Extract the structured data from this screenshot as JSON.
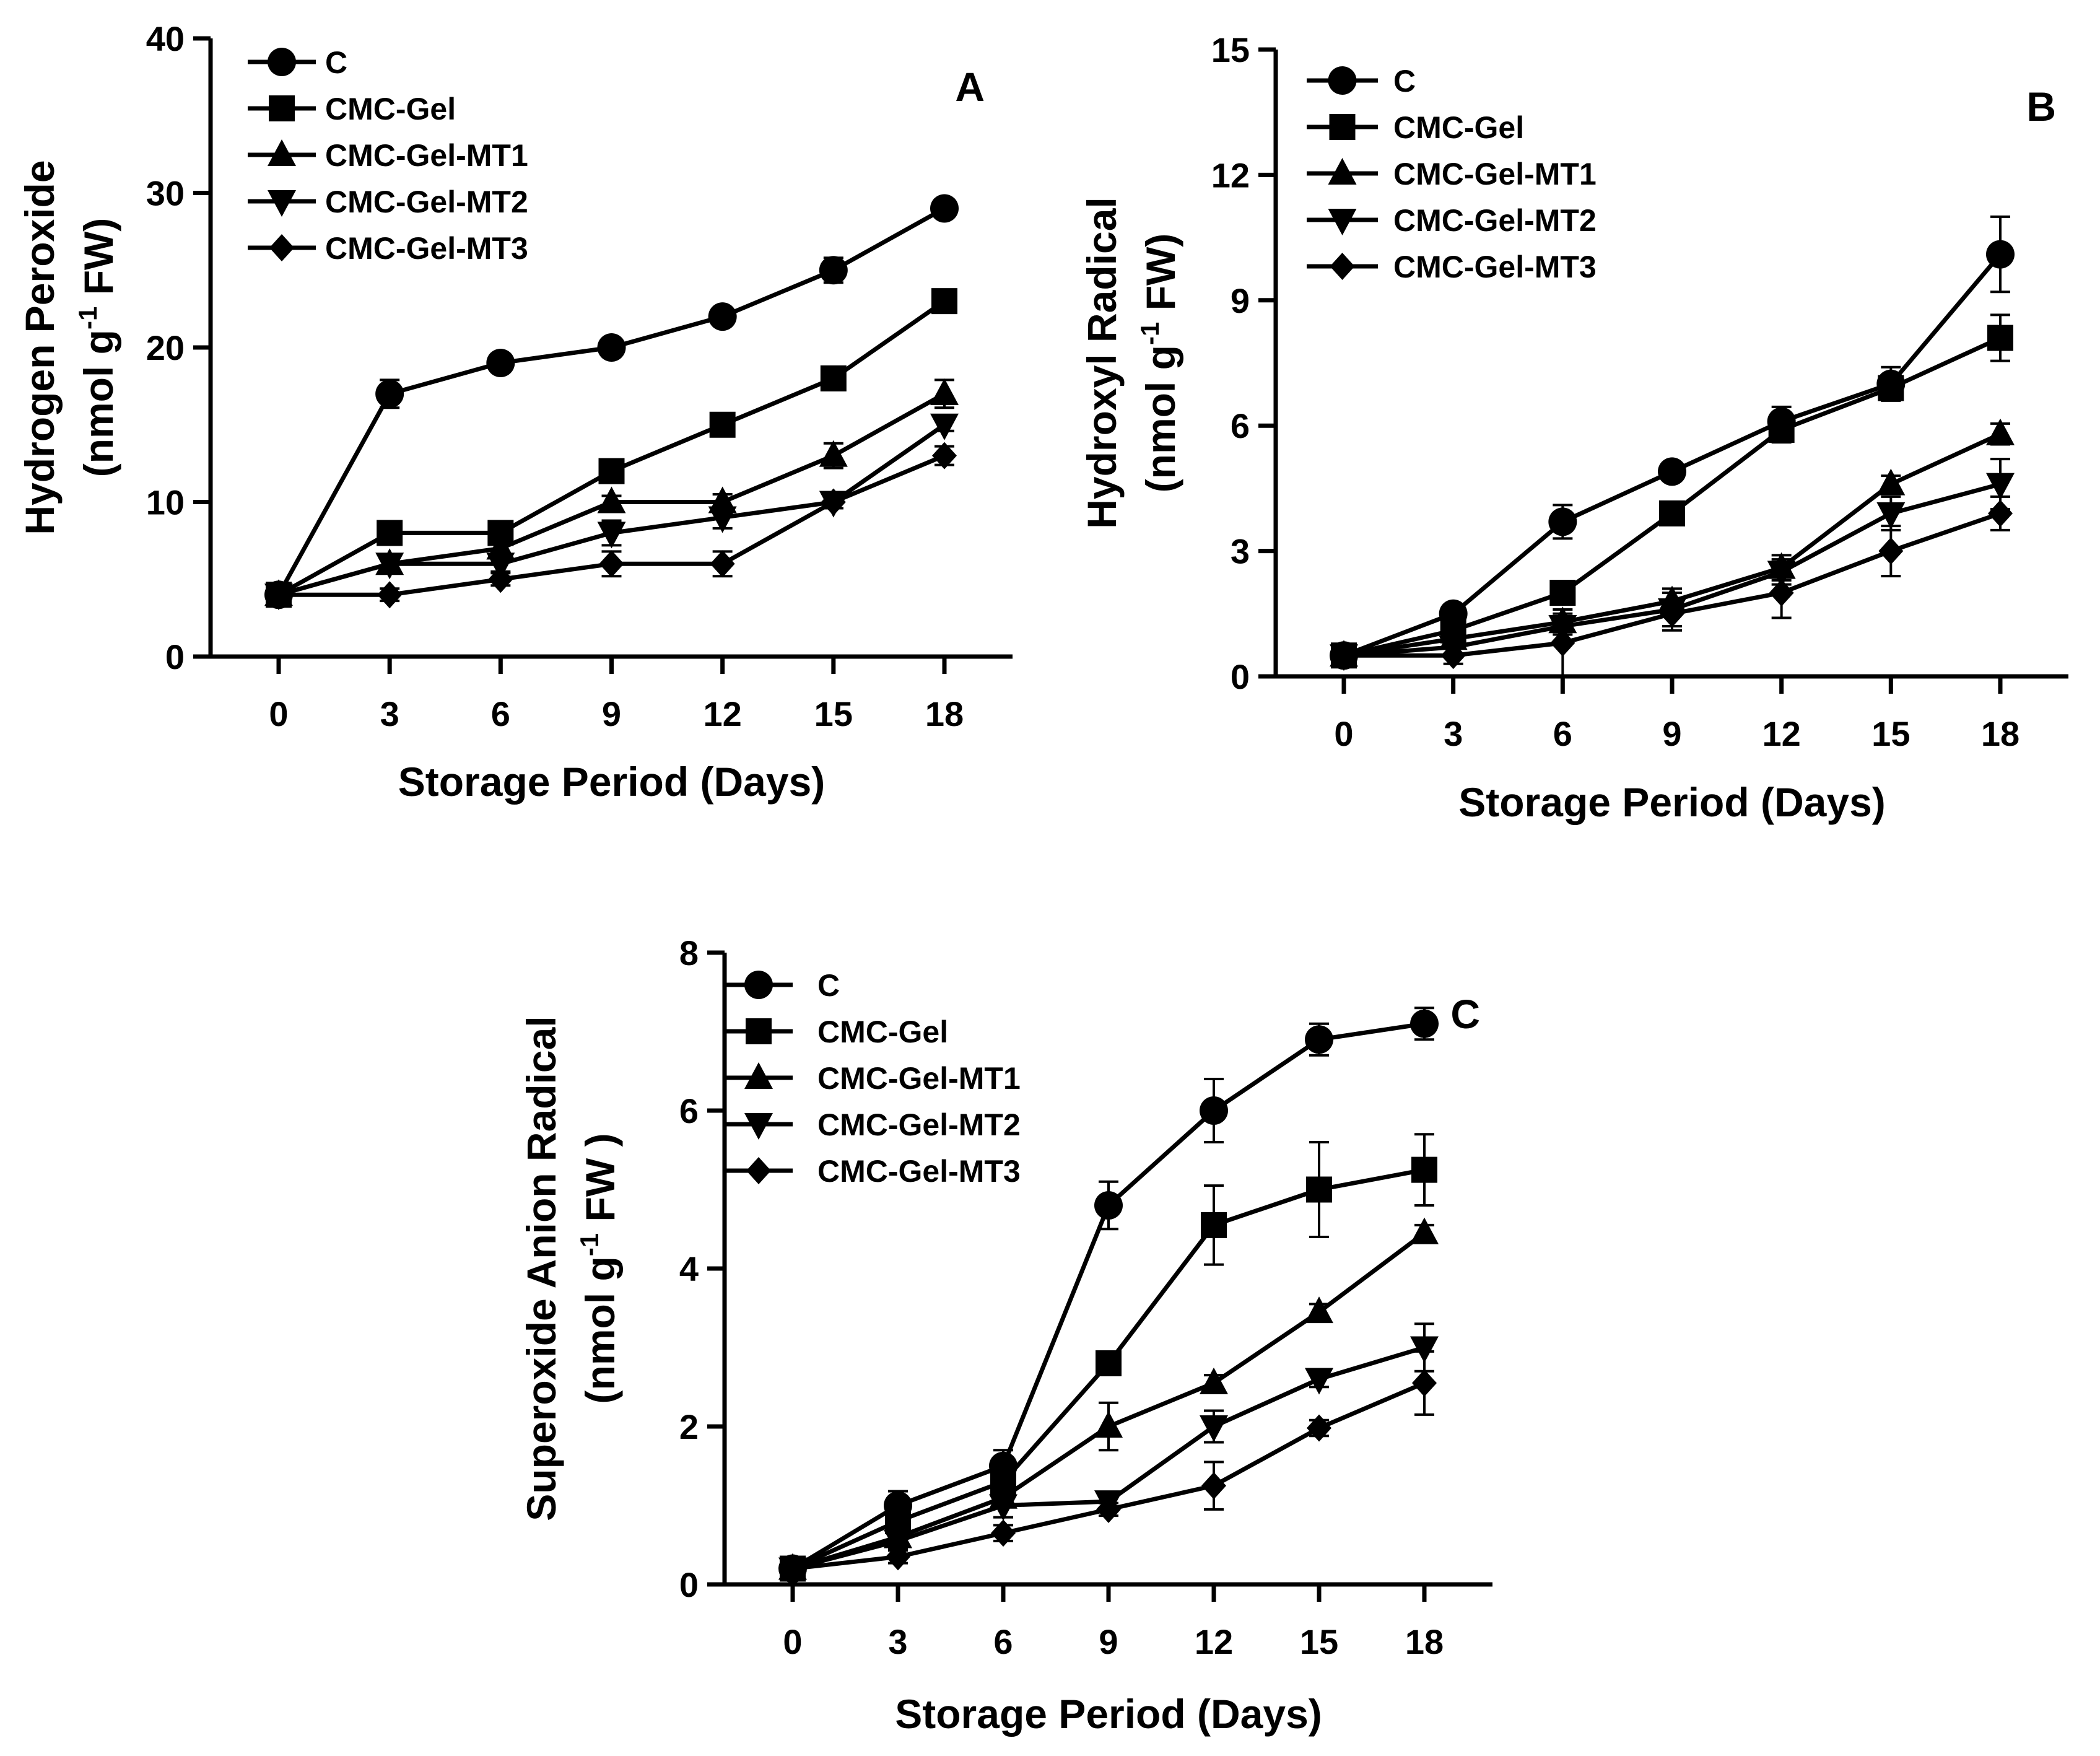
{
  "chart_data": [
    {
      "panel": "A",
      "type": "line",
      "ylabel_line1": "Hydrogen Peroxide",
      "ylabel_line2": "(nmol g-1 FW)",
      "ylabel_unit_pre": "(nmol g",
      "ylabel_unit_sup": "-1",
      "ylabel_unit_post": " FW)",
      "xlabel": "Storage Period (Days)",
      "x": [
        0,
        3,
        6,
        9,
        12,
        15,
        18
      ],
      "xticks": [
        "0",
        "3",
        "6",
        "9",
        "12",
        "15",
        "18"
      ],
      "ylim": [
        0,
        40
      ],
      "yticks": [
        "0",
        "10",
        "20",
        "30",
        "40"
      ],
      "series": [
        {
          "name": "C",
          "marker": "circle",
          "values": [
            4,
            17,
            19,
            20,
            22,
            25,
            29
          ],
          "errors": [
            0.5,
            0.9,
            0.4,
            0.4,
            0.4,
            0.8,
            0.5
          ]
        },
        {
          "name": "CMC-Gel",
          "marker": "square",
          "values": [
            4,
            8,
            8,
            12,
            15,
            18,
            23
          ],
          "errors": [
            0.5,
            0.5,
            0.5,
            0.5,
            0.4,
            0.4,
            0.5
          ]
        },
        {
          "name": "CMC-Gel-MT1",
          "marker": "triangle-up",
          "values": [
            4,
            6,
            7,
            10,
            10,
            13,
            17
          ],
          "errors": [
            0.4,
            0.5,
            0.5,
            0.4,
            0.5,
            0.8,
            0.9
          ]
        },
        {
          "name": "CMC-Gel-MT2",
          "marker": "triangle-down",
          "values": [
            4,
            6,
            6,
            8,
            9,
            10,
            15
          ],
          "errors": [
            0.4,
            0.4,
            0.5,
            0.8,
            0.7,
            0.4,
            0.4
          ]
        },
        {
          "name": "CMC-Gel-MT3",
          "marker": "diamond",
          "values": [
            4,
            4,
            5,
            6,
            6,
            10,
            13
          ],
          "errors": [
            0.4,
            0.4,
            0.4,
            0.8,
            0.8,
            0.4,
            0.6
          ]
        }
      ]
    },
    {
      "panel": "B",
      "type": "line",
      "ylabel_line1": "Hydroxyl Radical",
      "ylabel_line2": "(nmol g-1 FW)",
      "ylabel_unit_pre": "(nmol g",
      "ylabel_unit_sup": "-1",
      "ylabel_unit_post": " FW)",
      "xlabel": "Storage Period (Days)",
      "x": [
        0,
        3,
        6,
        9,
        12,
        15,
        18
      ],
      "xticks": [
        "0",
        "3",
        "6",
        "9",
        "12",
        "15",
        "18"
      ],
      "ylim": [
        0,
        15
      ],
      "yticks": [
        "0",
        "3",
        "6",
        "9",
        "12",
        "15"
      ],
      "series": [
        {
          "name": "C",
          "marker": "circle",
          "values": [
            0.5,
            1.5,
            3.7,
            4.9,
            6.1,
            7.0,
            10.1
          ],
          "errors": [
            0.15,
            0.2,
            0.4,
            0.2,
            0.35,
            0.4,
            0.9
          ]
        },
        {
          "name": "CMC-Gel",
          "marker": "square",
          "values": [
            0.5,
            1.1,
            2.0,
            3.9,
            5.9,
            6.9,
            8.1
          ],
          "errors": [
            0.15,
            0.2,
            0.2,
            0.2,
            0.3,
            0.3,
            0.55
          ]
        },
        {
          "name": "CMC-Gel-MT1",
          "marker": "triangle-up",
          "values": [
            0.5,
            0.9,
            1.3,
            1.8,
            2.6,
            4.6,
            5.8
          ],
          "errors": [
            0.15,
            0.2,
            0.2,
            0.2,
            0.3,
            0.2,
            0.25
          ]
        },
        {
          "name": "CMC-Gel-MT2",
          "marker": "triangle-down",
          "values": [
            0.5,
            0.7,
            1.2,
            1.6,
            2.5,
            3.9,
            4.6
          ],
          "errors": [
            0.15,
            0.2,
            0.2,
            0.5,
            0.3,
            0.4,
            0.6
          ]
        },
        {
          "name": "CMC-Gel-MT3",
          "marker": "diamond",
          "values": [
            0.5,
            0.5,
            0.8,
            1.5,
            2.0,
            3.0,
            3.9
          ],
          "errors": [
            0.15,
            0.2,
            0.8,
            0.3,
            0.6,
            0.6,
            0.4
          ]
        }
      ]
    },
    {
      "panel": "C",
      "type": "line",
      "ylabel_line1": "Superoxide Anion Radical",
      "ylabel_line2": "(nmol g-1 FW )",
      "ylabel_unit_pre": "(nmol g",
      "ylabel_unit_sup": "-1",
      "ylabel_unit_post": " FW )",
      "xlabel": "Storage Period (Days)",
      "x": [
        0,
        3,
        6,
        9,
        12,
        15,
        18
      ],
      "xticks": [
        "0",
        "3",
        "6",
        "9",
        "12",
        "15",
        "18"
      ],
      "ylim": [
        0,
        8
      ],
      "yticks": [
        "0",
        "2",
        "4",
        "6",
        "8"
      ],
      "series": [
        {
          "name": "C",
          "marker": "circle",
          "values": [
            0.2,
            1.0,
            1.5,
            4.8,
            6.0,
            6.9,
            7.1
          ],
          "errors": [
            0.05,
            0.18,
            0.2,
            0.3,
            0.4,
            0.2,
            0.2
          ]
        },
        {
          "name": "CMC-Gel",
          "marker": "square",
          "values": [
            0.2,
            0.8,
            1.3,
            2.8,
            4.55,
            5.0,
            5.25
          ],
          "errors": [
            0.05,
            0.15,
            0.15,
            0.1,
            0.5,
            0.6,
            0.45
          ]
        },
        {
          "name": "CMC-Gel-MT1",
          "marker": "triangle-up",
          "values": [
            0.2,
            0.6,
            1.1,
            2.0,
            2.55,
            3.45,
            4.45
          ],
          "errors": [
            0.05,
            0.1,
            0.1,
            0.3,
            0.1,
            0.1,
            0.1
          ]
        },
        {
          "name": "CMC-Gel-MT2",
          "marker": "triangle-down",
          "values": [
            0.2,
            0.55,
            1.0,
            1.05,
            2.0,
            2.6,
            3.0
          ],
          "errors": [
            0.05,
            0.1,
            0.15,
            0.1,
            0.2,
            0.1,
            0.3
          ]
        },
        {
          "name": "CMC-Gel-MT3",
          "marker": "diamond",
          "values": [
            0.2,
            0.35,
            0.65,
            0.95,
            1.25,
            1.98,
            2.55
          ],
          "errors": [
            0.05,
            0.08,
            0.1,
            0.08,
            0.3,
            0.1,
            0.4
          ]
        }
      ]
    }
  ]
}
